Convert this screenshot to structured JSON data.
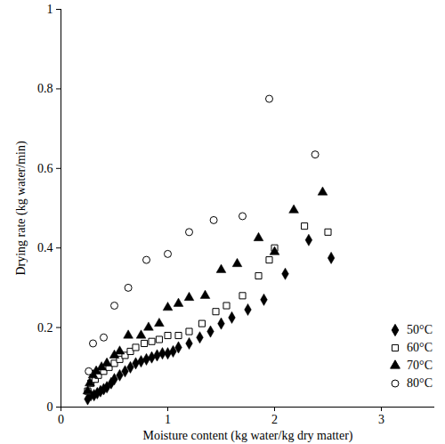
{
  "chart_data": {
    "type": "scatter",
    "x_label": "Moisture content (kg water/kg dry matter)",
    "y_label": "Drying rate (kg water/min)",
    "xlim": [
      0,
      3.5
    ],
    "xticks": [
      0,
      1,
      2,
      3
    ],
    "ylim": [
      0,
      1
    ],
    "yticks": [
      0,
      0.2,
      0.4,
      0.6,
      0.8,
      1
    ],
    "grid": false,
    "legend": "bottom-right",
    "series": [
      {
        "name": "50°C",
        "color": "#000000",
        "marker": "diamond",
        "x": [
          0.25,
          0.28,
          0.31,
          0.34,
          0.37,
          0.4,
          0.43,
          0.47,
          0.5,
          0.55,
          0.6,
          0.65,
          0.7,
          0.75,
          0.8,
          0.85,
          0.9,
          0.95,
          1.0,
          1.05,
          1.1,
          1.2,
          1.3,
          1.4,
          1.5,
          1.6,
          1.75,
          1.9,
          2.1,
          2.32,
          2.53
        ],
        "values": [
          0.02,
          0.03,
          0.03,
          0.035,
          0.04,
          0.045,
          0.05,
          0.06,
          0.07,
          0.08,
          0.09,
          0.1,
          0.11,
          0.115,
          0.12,
          0.125,
          0.13,
          0.135,
          0.135,
          0.14,
          0.15,
          0.16,
          0.175,
          0.19,
          0.21,
          0.225,
          0.245,
          0.27,
          0.335,
          0.42,
          0.375
        ]
      },
      {
        "name": "60°C",
        "color": "#000000",
        "marker": "square-open",
        "x": [
          0.25,
          0.28,
          0.32,
          0.35,
          0.4,
          0.45,
          0.5,
          0.55,
          0.6,
          0.65,
          0.7,
          0.78,
          0.85,
          0.92,
          1.0,
          1.1,
          1.2,
          1.32,
          1.45,
          1.55,
          1.7,
          1.85,
          1.95,
          2.0,
          2.28,
          2.5
        ],
        "values": [
          0.04,
          0.06,
          0.07,
          0.08,
          0.09,
          0.1,
          0.11,
          0.12,
          0.13,
          0.14,
          0.15,
          0.16,
          0.165,
          0.17,
          0.18,
          0.18,
          0.19,
          0.21,
          0.24,
          0.255,
          0.28,
          0.33,
          0.37,
          0.4,
          0.455,
          0.44
        ]
      },
      {
        "name": "70°C",
        "color": "#000000",
        "marker": "triangle",
        "x": [
          0.25,
          0.27,
          0.3,
          0.33,
          0.38,
          0.43,
          0.5,
          0.55,
          0.63,
          0.75,
          0.82,
          0.92,
          1.0,
          1.1,
          1.2,
          1.35,
          1.5,
          1.65,
          1.85,
          2.0,
          2.18,
          2.45
        ],
        "values": [
          0.04,
          0.06,
          0.08,
          0.09,
          0.1,
          0.11,
          0.13,
          0.14,
          0.18,
          0.18,
          0.2,
          0.21,
          0.25,
          0.26,
          0.275,
          0.28,
          0.345,
          0.36,
          0.425,
          0.39,
          0.495,
          0.54
        ]
      },
      {
        "name": "80°C",
        "color": "#000000",
        "marker": "circle-open",
        "x": [
          0.26,
          0.3,
          0.4,
          0.5,
          0.63,
          0.8,
          1.0,
          1.2,
          1.43,
          1.7,
          1.95,
          2.38
        ],
        "values": [
          0.09,
          0.16,
          0.175,
          0.255,
          0.3,
          0.37,
          0.385,
          0.44,
          0.47,
          0.48,
          0.775,
          0.635
        ]
      }
    ]
  }
}
